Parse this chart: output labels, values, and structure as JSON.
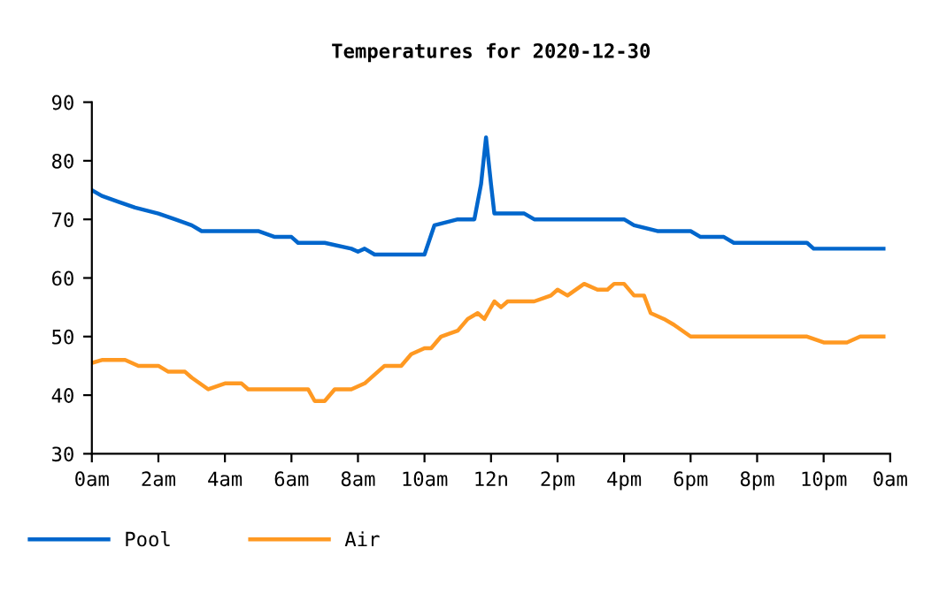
{
  "chart_data": {
    "type": "line",
    "title": "Temperatures for 2020-12-30",
    "xlim": [
      "2020-12-30T00:00",
      "2020-12-31T00:00"
    ],
    "xticks": [
      {
        "value": "2020-12-30T00:00",
        "label": "0am"
      },
      {
        "value": "2020-12-30T02:00",
        "label": "2am"
      },
      {
        "value": "2020-12-30T04:00",
        "label": "4am"
      },
      {
        "value": "2020-12-30T06:00",
        "label": "6am"
      },
      {
        "value": "2020-12-30T08:00",
        "label": "8am"
      },
      {
        "value": "2020-12-30T10:00",
        "label": "10am"
      },
      {
        "value": "2020-12-30T12:00",
        "label": "12n"
      },
      {
        "value": "2020-12-30T14:00",
        "label": "2pm"
      },
      {
        "value": "2020-12-30T16:00",
        "label": "4pm"
      },
      {
        "value": "2020-12-30T18:00",
        "label": "6pm"
      },
      {
        "value": "2020-12-30T20:00",
        "label": "8pm"
      },
      {
        "value": "2020-12-30T22:00",
        "label": "10pm"
      },
      {
        "value": "2020-12-31T00:00",
        "label": "0am"
      }
    ],
    "ylim": [
      30,
      90
    ],
    "yticks": [
      30,
      40,
      50,
      60,
      70,
      80,
      90
    ],
    "grid": false,
    "legend": "bottom",
    "marker": "none",
    "line_style": "solid",
    "series": [
      {
        "name": "Pool",
        "color": "#0066cc",
        "x": [
          "2020-12-30T00:00",
          "2020-12-30T00:18",
          "2020-12-30T00:48",
          "2020-12-30T01:18",
          "2020-12-30T02:00",
          "2020-12-30T02:30",
          "2020-12-30T03:00",
          "2020-12-30T03:18",
          "2020-12-30T05:00",
          "2020-12-30T05:30",
          "2020-12-30T06:00",
          "2020-12-30T06:12",
          "2020-12-30T07:00",
          "2020-12-30T07:48",
          "2020-12-30T08:00",
          "2020-12-30T08:12",
          "2020-12-30T08:30",
          "2020-12-30T10:00",
          "2020-12-30T10:18",
          "2020-12-30T11:00",
          "2020-12-30T11:30",
          "2020-12-30T11:42",
          "2020-12-30T11:51",
          "2020-12-30T12:00",
          "2020-12-30T12:06",
          "2020-12-30T13:00",
          "2020-12-30T13:18",
          "2020-12-30T16:00",
          "2020-12-30T16:18",
          "2020-12-30T17:00",
          "2020-12-30T18:00",
          "2020-12-30T18:18",
          "2020-12-30T19:00",
          "2020-12-30T19:18",
          "2020-12-30T21:30",
          "2020-12-30T21:42",
          "2020-12-30T23:48"
        ],
        "values": [
          75,
          74,
          73,
          72,
          71,
          70,
          69,
          68,
          68,
          67,
          67,
          66,
          66,
          65,
          64.5,
          65,
          64,
          64,
          69,
          70,
          70,
          76,
          84,
          76,
          71,
          71,
          70,
          70,
          69,
          68,
          68,
          67,
          67,
          66,
          66,
          65,
          65
        ]
      },
      {
        "name": "Air",
        "color": "#ff9922",
        "x": [
          "2020-12-30T00:00",
          "2020-12-30T00:18",
          "2020-12-30T01:00",
          "2020-12-30T01:24",
          "2020-12-30T02:00",
          "2020-12-30T02:18",
          "2020-12-30T02:48",
          "2020-12-30T03:00",
          "2020-12-30T03:30",
          "2020-12-30T04:00",
          "2020-12-30T04:30",
          "2020-12-30T04:42",
          "2020-12-30T06:30",
          "2020-12-30T06:42",
          "2020-12-30T07:00",
          "2020-12-30T07:18",
          "2020-12-30T07:48",
          "2020-12-30T08:12",
          "2020-12-30T08:30",
          "2020-12-30T08:48",
          "2020-12-30T09:18",
          "2020-12-30T09:36",
          "2020-12-30T10:00",
          "2020-12-30T10:12",
          "2020-12-30T10:30",
          "2020-12-30T11:00",
          "2020-12-30T11:18",
          "2020-12-30T11:36",
          "2020-12-30T11:48",
          "2020-12-30T12:06",
          "2020-12-30T12:18",
          "2020-12-30T12:30",
          "2020-12-30T13:18",
          "2020-12-30T13:48",
          "2020-12-30T14:00",
          "2020-12-30T14:18",
          "2020-12-30T14:48",
          "2020-12-30T15:12",
          "2020-12-30T15:30",
          "2020-12-30T15:42",
          "2020-12-30T16:00",
          "2020-12-30T16:18",
          "2020-12-30T16:36",
          "2020-12-30T16:48",
          "2020-12-30T17:12",
          "2020-12-30T17:30",
          "2020-12-30T18:00",
          "2020-12-30T21:30",
          "2020-12-30T22:00",
          "2020-12-30T22:42",
          "2020-12-30T23:06",
          "2020-12-30T23:48"
        ],
        "values": [
          45.5,
          46,
          46,
          45,
          45,
          44,
          44,
          43,
          41,
          42,
          42,
          41,
          41,
          39,
          39,
          41,
          41,
          42,
          43.5,
          45,
          45,
          47,
          48,
          48,
          50,
          51,
          53,
          54,
          53,
          56,
          55,
          56,
          56,
          57,
          58,
          57,
          59,
          58,
          58,
          59,
          59,
          57,
          57,
          54,
          53,
          52,
          50,
          50,
          49,
          49,
          50,
          50
        ]
      }
    ]
  }
}
